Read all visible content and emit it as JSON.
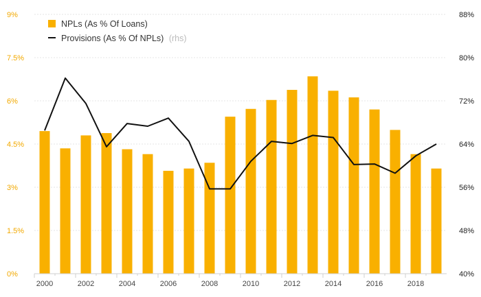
{
  "chart_data": {
    "type": "bar+line",
    "categories": [
      "2000",
      "2001",
      "2002",
      "2003",
      "2004",
      "2005",
      "2006",
      "2007",
      "2008",
      "2009",
      "2010",
      "2011",
      "2012",
      "2013",
      "2014",
      "2015",
      "2016",
      "2017",
      "2018",
      "2019"
    ],
    "x_tick_labels": [
      "2000",
      "2002",
      "2004",
      "2006",
      "2008",
      "2010",
      "2012",
      "2014",
      "2016",
      "2018"
    ],
    "series": [
      {
        "name": "NPLs (As % Of Loans)",
        "type": "bar",
        "axis": "left",
        "color": "#f9b000",
        "values": [
          4.95,
          4.35,
          4.8,
          4.88,
          4.32,
          4.15,
          3.57,
          3.65,
          3.85,
          5.45,
          5.72,
          6.03,
          6.38,
          6.85,
          6.35,
          6.12,
          5.7,
          4.99,
          4.15,
          3.65
        ]
      },
      {
        "name": "Provisions (As % Of NPLs)",
        "type": "line",
        "axis": "right",
        "color": "#111111",
        "values": [
          66.5,
          76.2,
          71.5,
          63.5,
          67.8,
          67.3,
          68.8,
          64.5,
          55.7,
          55.7,
          60.8,
          64.5,
          64.1,
          65.6,
          65.2,
          60.2,
          60.3,
          58.6,
          61.8,
          64.0
        ]
      }
    ],
    "legend": {
      "bar_label": "NPLs (As % Of Loans)",
      "line_label": "Provisions (As % Of NPLs)",
      "line_suffix": "(rhs)"
    },
    "y_left": {
      "min": 0,
      "max": 9,
      "ticks": [
        0,
        1.5,
        3,
        4.5,
        6,
        7.5,
        9
      ],
      "tick_labels": [
        "0%",
        "1.5%",
        "3%",
        "4.5%",
        "6%",
        "7.5%",
        "9%"
      ]
    },
    "y_right": {
      "min": 40,
      "max": 88,
      "ticks": [
        40,
        48,
        56,
        64,
        72,
        80,
        88
      ],
      "tick_labels": [
        "40%",
        "48%",
        "56%",
        "64%",
        "72%",
        "80%",
        "88%"
      ]
    },
    "grid": true,
    "title": "",
    "xlabel": "",
    "ylabel": ""
  }
}
